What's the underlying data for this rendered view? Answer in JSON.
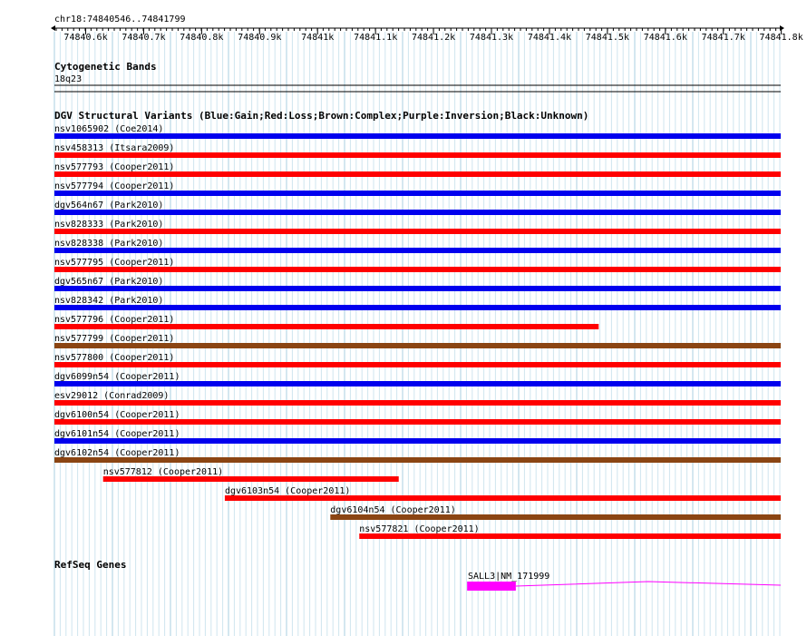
{
  "locus": "chr18:74840546..74841799",
  "ruler": {
    "ticks": [
      "74840.6k",
      "74840.7k",
      "74840.8k",
      "74840.9k",
      "74841k",
      "74841.1k",
      "74841.2k",
      "74841.3k",
      "74841.4k",
      "74841.5k",
      "74841.6k",
      "74841.7k",
      "74841.8k"
    ]
  },
  "cytoband": {
    "title": "Cytogenetic Bands",
    "band": "18q23"
  },
  "dgv": {
    "title": "DGV Structural Variants (Blue:Gain;Red:Loss;Brown:Complex;Purple:Inversion;Black:Unknown)",
    "colors": {
      "gain": "#0000ee",
      "loss": "#ff0000",
      "complex": "#8b4513"
    },
    "variants": [
      {
        "label": "nsv1065902 (Coe2014)",
        "type": "gain",
        "start": 74840546,
        "end": 74841799
      },
      {
        "label": "nsv458313 (Itsara2009)",
        "type": "loss",
        "start": 74840546,
        "end": 74841799
      },
      {
        "label": "nsv577793 (Cooper2011)",
        "type": "loss",
        "start": 74840546,
        "end": 74841799
      },
      {
        "label": "nsv577794 (Cooper2011)",
        "type": "gain",
        "start": 74840546,
        "end": 74841799
      },
      {
        "label": "dgv564n67 (Park2010)",
        "type": "gain",
        "start": 74840546,
        "end": 74841799
      },
      {
        "label": "nsv828333 (Park2010)",
        "type": "loss",
        "start": 74840546,
        "end": 74841799
      },
      {
        "label": "nsv828338 (Park2010)",
        "type": "gain",
        "start": 74840546,
        "end": 74841799
      },
      {
        "label": "nsv577795 (Cooper2011)",
        "type": "loss",
        "start": 74840546,
        "end": 74841799
      },
      {
        "label": "dgv565n67 (Park2010)",
        "type": "gain",
        "start": 74840546,
        "end": 74841799
      },
      {
        "label": "nsv828342 (Park2010)",
        "type": "gain",
        "start": 74840546,
        "end": 74841799
      },
      {
        "label": "nsv577796 (Cooper2011)",
        "type": "loss",
        "start": 74840546,
        "end": 74841485
      },
      {
        "label": "nsv577799 (Cooper2011)",
        "type": "complex",
        "start": 74840546,
        "end": 74841799
      },
      {
        "label": "nsv577800 (Cooper2011)",
        "type": "loss",
        "start": 74840546,
        "end": 74841799
      },
      {
        "label": "dgv6099n54 (Cooper2011)",
        "type": "gain",
        "start": 74840546,
        "end": 74841799
      },
      {
        "label": "esv29012 (Conrad2009)",
        "type": "loss",
        "start": 74840546,
        "end": 74841799
      },
      {
        "label": "dgv6100n54 (Cooper2011)",
        "type": "loss",
        "start": 74840546,
        "end": 74841799
      },
      {
        "label": "dgv6101n54 (Cooper2011)",
        "type": "gain",
        "start": 74840546,
        "end": 74841799
      },
      {
        "label": "dgv6102n54 (Cooper2011)",
        "type": "complex",
        "start": 74840546,
        "end": 74841799
      },
      {
        "label": "nsv577812 (Cooper2011)",
        "type": "loss",
        "start": 74840630,
        "end": 74841140
      },
      {
        "label": "dgv6103n54 (Cooper2011)",
        "type": "loss",
        "start": 74840840,
        "end": 74841799
      },
      {
        "label": "dgv6104n54 (Cooper2011)",
        "type": "complex",
        "start": 74841022,
        "end": 74841799
      },
      {
        "label": "nsv577821 (Cooper2011)",
        "type": "loss",
        "start": 74841072,
        "end": 74841799
      }
    ]
  },
  "refseq": {
    "title": "RefSeq Genes",
    "gene_label": "SALL3|NM_171999",
    "gene_color": "#ff00ff",
    "exon": {
      "start": 74841258,
      "end": 74841342
    },
    "gene_end": 74841799
  }
}
